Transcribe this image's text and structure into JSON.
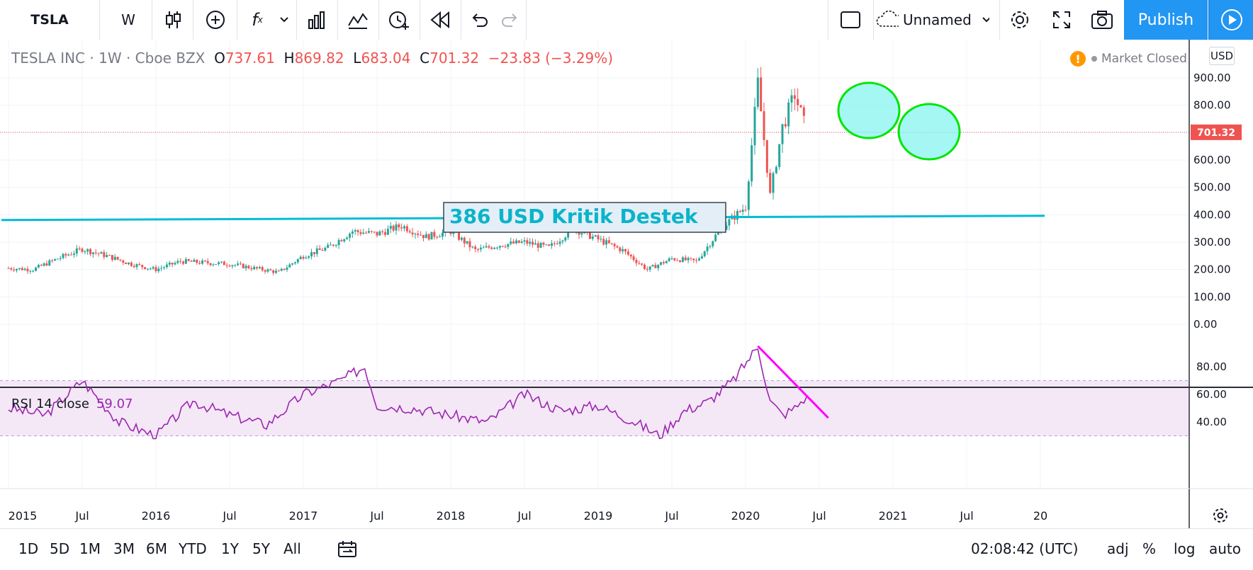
{
  "toolbar": {
    "symbol": "TSLA",
    "interval": "W",
    "layout_name": "Unnamed",
    "publish_label": "Publish",
    "icons": [
      "candles-icon",
      "add-compare-icon",
      "indicators-icon",
      "chevron-down-icon",
      "financials-icon",
      "templates-icon",
      "alert-icon",
      "replay-icon",
      "undo-icon",
      "redo-icon",
      "rectangle-icon",
      "cloud-icon",
      "gear-icon",
      "fullscreen-icon",
      "camera-icon",
      "play-icon"
    ]
  },
  "legend": {
    "name": "TESLA INC",
    "interval": "1W",
    "exchange": "Cboe BZX",
    "open_label": "O",
    "open": "737.61",
    "high_label": "H",
    "high": "869.82",
    "low_label": "L",
    "low": "683.04",
    "close_label": "C",
    "close": "701.32",
    "change": "−23.83 (−3.29%)",
    "sep": "·"
  },
  "status": {
    "market": "Market Closed",
    "warning": "!",
    "currency": "USD"
  },
  "price_axis": {
    "ticks": [
      "900.00",
      "800.00",
      "700.00",
      "600.00",
      "500.00",
      "400.00",
      "300.00",
      "200.00",
      "100.00",
      "0.00"
    ],
    "last_price_label": "701.32"
  },
  "rsi": {
    "label": "RSI 14 close",
    "value": "59.07",
    "ticks": [
      "80.00",
      "60.00",
      "40.00"
    ]
  },
  "time_axis": {
    "labels": [
      "2015",
      "Jul",
      "2016",
      "Jul",
      "2017",
      "Jul",
      "2018",
      "Jul",
      "2019",
      "Jul",
      "2020",
      "Jul",
      "2021",
      "Jul",
      "20"
    ]
  },
  "annotation": {
    "text": "386 USD Kritik Destek"
  },
  "bottombar": {
    "ranges": [
      "1D",
      "5D",
      "1M",
      "3M",
      "6M",
      "YTD",
      "1Y",
      "5Y",
      "All"
    ],
    "clock": "02:08:42 (UTC)",
    "options": [
      "adj",
      "%",
      "log",
      "auto"
    ]
  },
  "colors": {
    "up": "#26a69a",
    "down": "#ef5350",
    "rsi": "#9c27b0",
    "support": "#00bcd4",
    "circle": "#00e600",
    "rsi_trend": "#ff00ff",
    "accent": "#2196f3"
  },
  "chart_data": [
    {
      "type": "candlestick",
      "title": "TESLA INC · 1W · Cboe BZX",
      "ylim": [
        -20,
        990
      ],
      "xlim": [
        "2015-01",
        "2021-12"
      ],
      "support_level": 386,
      "last_price": 701.32,
      "x": [
        "2015-01",
        "2015-03",
        "2015-05",
        "2015-07",
        "2015-09",
        "2015-11",
        "2016-01",
        "2016-03",
        "2016-05",
        "2016-07",
        "2016-09",
        "2016-11",
        "2017-01",
        "2017-03",
        "2017-05",
        "2017-07",
        "2017-09",
        "2017-11",
        "2018-01",
        "2018-03",
        "2018-05",
        "2018-07",
        "2018-09",
        "2018-11",
        "2019-01",
        "2019-03",
        "2019-05",
        "2019-07",
        "2019-09",
        "2019-11",
        "2020-01",
        "2020-02",
        "2020-03",
        "2020-04",
        "2020-05",
        "2020-06"
      ],
      "values": [
        205,
        200,
        240,
        275,
        250,
        220,
        200,
        230,
        225,
        220,
        205,
        190,
        250,
        280,
        340,
        330,
        360,
        320,
        340,
        270,
        290,
        300,
        280,
        350,
        310,
        270,
        200,
        240,
        230,
        350,
        430,
        880,
        470,
        720,
        840,
        701
      ]
    },
    {
      "type": "line",
      "title": "RSI 14 close",
      "ylim": [
        26,
        100
      ],
      "bands": [
        30,
        70
      ],
      "x": [
        "2015-01",
        "2015-04",
        "2015-07",
        "2015-10",
        "2016-01",
        "2016-04",
        "2016-07",
        "2016-10",
        "2017-01",
        "2017-04",
        "2017-06",
        "2017-07",
        "2017-10",
        "2018-01",
        "2018-04",
        "2018-07",
        "2018-10",
        "2019-01",
        "2019-04",
        "2019-06",
        "2019-08",
        "2019-10",
        "2019-12",
        "2020-02",
        "2020-03",
        "2020-04",
        "2020-05",
        "2020-06"
      ],
      "values": [
        50,
        45,
        70,
        40,
        30,
        55,
        45,
        38,
        60,
        70,
        80,
        52,
        50,
        45,
        40,
        60,
        48,
        52,
        40,
        30,
        48,
        55,
        70,
        95,
        55,
        45,
        50,
        59
      ]
    }
  ]
}
